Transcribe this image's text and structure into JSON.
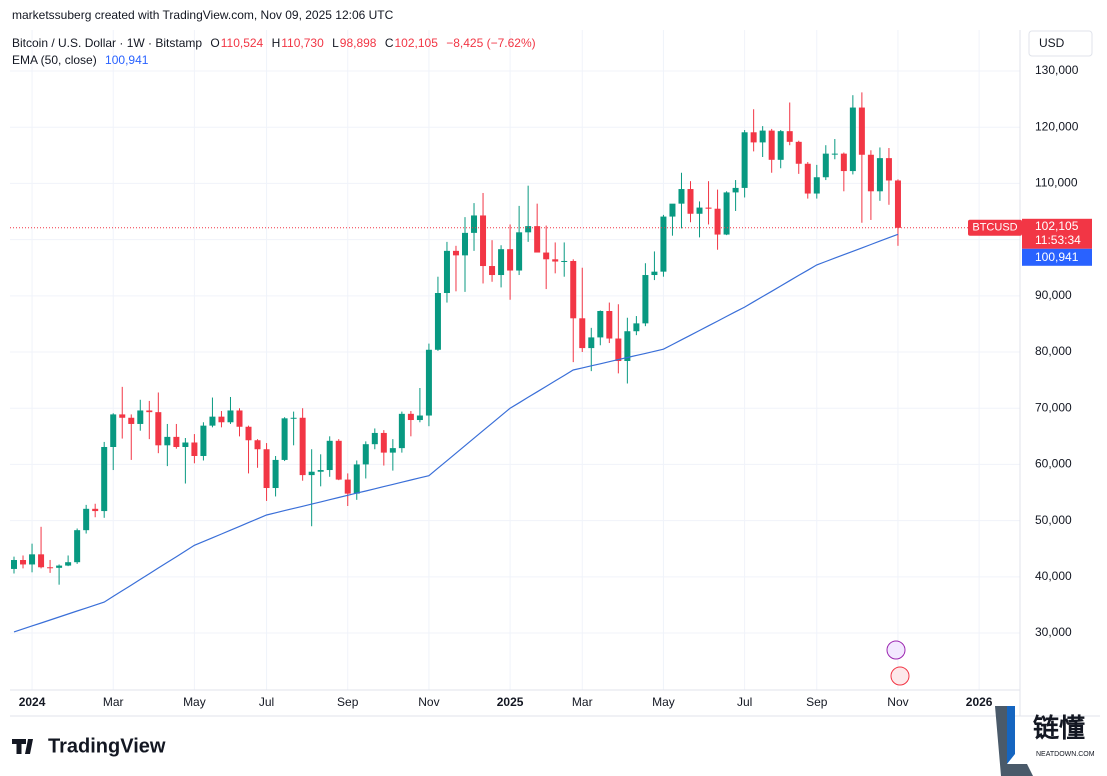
{
  "header": {
    "credit": "marketssuberg created with TradingView.com, Nov 09, 2025 12:06 UTC"
  },
  "legend": {
    "symbol": "Bitcoin / U.S. Dollar · 1W · Bitstamp",
    "o_key": "O",
    "o": "110,524",
    "h_key": "H",
    "h": "110,730",
    "l_key": "L",
    "l": "98,898",
    "c_key": "C",
    "c": "102,105",
    "change": "−8,425 (−7.62%)",
    "ema_name": "EMA (50, close)",
    "ema_value": "100,941"
  },
  "price_scale": {
    "currency": "USD",
    "symbol": "BTCUSD",
    "countdown": "11:53:34"
  },
  "footer": {
    "brand": "TradingView",
    "watermark": "链懂",
    "watermark_sub": "NEATDOWN.COM"
  },
  "chart_data": {
    "type": "candlestick",
    "categories": [
      null,
      null,
      "2024",
      null,
      null,
      null,
      null,
      null,
      null,
      null,
      null,
      "Mar",
      null,
      null,
      null,
      null,
      null,
      null,
      null,
      null,
      "May",
      null,
      null,
      null,
      null,
      null,
      null,
      null,
      "Jul",
      null,
      null,
      null,
      null,
      null,
      null,
      null,
      null,
      "Sep",
      null,
      null,
      null,
      null,
      null,
      null,
      null,
      null,
      "Nov",
      null,
      null,
      null,
      null,
      null,
      null,
      null,
      null,
      "2025",
      null,
      null,
      null,
      null,
      null,
      null,
      null,
      "Mar",
      null,
      null,
      null,
      null,
      null,
      null,
      null,
      null,
      "May",
      null,
      null,
      null,
      null,
      null,
      null,
      null,
      null,
      "Jul",
      null,
      null,
      null,
      null,
      null,
      null,
      null,
      "Sep",
      null,
      null,
      null,
      null,
      null,
      null,
      null,
      null,
      "Nov",
      null,
      null,
      null,
      null,
      null,
      null,
      null,
      null,
      "2026"
    ],
    "up_color": "#089981",
    "down_color": "#f23645",
    "open": [
      41400,
      42990,
      42200,
      44000,
      41700,
      41600,
      42000,
      42600,
      48300,
      52100,
      51700,
      63100,
      68900,
      68300,
      67200,
      69600,
      69300,
      63400,
      64900,
      63100,
      63900,
      61500,
      66900,
      68500,
      67500,
      69600,
      66700,
      64300,
      62700,
      55800,
      60800,
      68200,
      68300,
      58100,
      58700,
      59000,
      64200,
      57300,
      54800,
      60000,
      63600,
      65600,
      62100,
      62900,
      69000,
      67900,
      68700,
      80400,
      90500,
      98000,
      97200,
      101200,
      104300,
      95300,
      93700,
      98300,
      94500,
      101300,
      102400,
      97700,
      96500,
      96100,
      96200,
      86000,
      80700,
      82600,
      87300,
      82400,
      78400,
      83700,
      85100,
      93700,
      94300,
      104100,
      106400,
      109000,
      104600,
      105700,
      105500,
      100900,
      108400,
      109200,
      119100,
      117300,
      119400,
      114200,
      119300,
      117400,
      113500,
      108200,
      111100,
      115300,
      115300,
      112200,
      123500,
      115100,
      108600,
      114500,
      110524,
      null,
      null,
      null,
      null,
      null,
      null,
      null,
      null,
      null
    ],
    "high": [
      43600,
      43800,
      45900,
      48900,
      43000,
      42200,
      43800,
      48600,
      52800,
      53000,
      64000,
      69100,
      73800,
      68900,
      71500,
      71300,
      72800,
      67200,
      67200,
      64700,
      65400,
      67500,
      71900,
      69500,
      72000,
      70000,
      66900,
      64500,
      63800,
      61500,
      68400,
      69400,
      70000,
      62700,
      61800,
      65000,
      64500,
      58400,
      60700,
      64100,
      66400,
      66100,
      64500,
      69400,
      69500,
      73600,
      81500,
      93400,
      99600,
      98900,
      104000,
      106500,
      108300,
      99900,
      99000,
      102700,
      106000,
      109600,
      106400,
      102500,
      99500,
      99500,
      96500,
      95000,
      84300,
      87400,
      88800,
      88500,
      86100,
      86400,
      95800,
      97900,
      104400,
      105800,
      111900,
      110400,
      106800,
      110400,
      108900,
      108600,
      110600,
      119500,
      123200,
      120200,
      119700,
      119500,
      124400,
      117600,
      113800,
      113300,
      116800,
      117900,
      115500,
      125700,
      126200,
      115900,
      116400,
      116300,
      110730,
      null,
      null,
      null,
      null,
      null,
      null,
      null,
      null,
      null
    ],
    "low": [
      40600,
      41500,
      40800,
      41500,
      40700,
      38600,
      41900,
      42300,
      47700,
      50600,
      50500,
      59000,
      64600,
      60800,
      66000,
      64500,
      62000,
      59700,
      62800,
      56600,
      60200,
      60700,
      66600,
      66600,
      67200,
      65000,
      58400,
      59400,
      53500,
      54300,
      60600,
      63400,
      57100,
      49000,
      56100,
      57800,
      57200,
      52600,
      53700,
      57500,
      62700,
      59800,
      58900,
      62100,
      65000,
      67500,
      66800,
      80200,
      88800,
      90800,
      90700,
      98000,
      92200,
      92500,
      91500,
      89300,
      93700,
      99600,
      97800,
      91200,
      94000,
      93400,
      78200,
      80000,
      76600,
      81200,
      81600,
      76200,
      74400,
      83000,
      84600,
      92800,
      93400,
      100700,
      102000,
      103100,
      100400,
      102700,
      98200,
      100800,
      105100,
      107500,
      115700,
      114700,
      111900,
      112700,
      116800,
      111700,
      107300,
      107300,
      110600,
      114300,
      108600,
      111600,
      103000,
      103500,
      106900,
      106200,
      98898,
      null,
      null,
      null,
      null,
      null,
      null,
      null,
      null,
      null
    ],
    "close": [
      42990,
      42200,
      44000,
      41700,
      41600,
      42000,
      42600,
      48300,
      52100,
      51700,
      63100,
      68900,
      68300,
      67200,
      69600,
      69300,
      63400,
      64900,
      63100,
      63900,
      61500,
      66900,
      68500,
      67500,
      69600,
      66700,
      64300,
      62700,
      55800,
      60800,
      68200,
      68300,
      58100,
      58700,
      59000,
      64200,
      57300,
      54800,
      60000,
      63600,
      65600,
      62100,
      62900,
      69000,
      67900,
      68700,
      80400,
      90500,
      98000,
      97200,
      101200,
      104300,
      95300,
      93700,
      98300,
      94500,
      101300,
      102400,
      97700,
      96500,
      96100,
      96200,
      86000,
      80700,
      82600,
      87300,
      82400,
      78400,
      83700,
      85100,
      93700,
      94300,
      104100,
      106400,
      109000,
      104600,
      105700,
      105500,
      100900,
      108400,
      109200,
      119100,
      117300,
      119400,
      114200,
      119300,
      117400,
      113500,
      108200,
      111100,
      115300,
      115300,
      112200,
      123500,
      115100,
      108600,
      114500,
      110524,
      102105,
      null,
      null,
      null,
      null,
      null,
      null,
      null,
      null,
      null
    ],
    "ema": {
      "color": "#3a6fd8",
      "values": [
        30200,
        30730,
        31260,
        31790,
        32320,
        32850,
        33380,
        33910,
        34440,
        34970,
        35500,
        36510,
        37520,
        38530,
        39540,
        40550,
        41560,
        42570,
        43580,
        44590,
        45600,
        46275,
        46950,
        47625,
        48300,
        48975,
        49650,
        50325,
        51000,
        51389,
        51778,
        52167,
        52556,
        52944,
        53333,
        53722,
        54111,
        54500,
        54889,
        55278,
        55667,
        56056,
        56444,
        56833,
        57222,
        57611,
        58000,
        59333,
        60667,
        62000,
        63333,
        64667,
        66000,
        67333,
        68667,
        70000,
        70971,
        71943,
        72914,
        73886,
        74857,
        75829,
        76800,
        77170,
        77540,
        77910,
        78280,
        78650,
        79020,
        79390,
        79760,
        80130,
        80500,
        81333,
        82167,
        83000,
        83833,
        84667,
        85500,
        86333,
        87167,
        88000,
        88938,
        89875,
        90813,
        91750,
        92688,
        93625,
        94563,
        95500,
        96105,
        96709,
        97314,
        97918,
        98523,
        99127,
        99732,
        100336,
        100941,
        null,
        null,
        null,
        null,
        null,
        null,
        null,
        null,
        null
      ]
    },
    "ylim": [
      19860,
      137300
    ],
    "yticks": [
      {
        "value": 30000,
        "label": "30,000"
      },
      {
        "value": 40000,
        "label": "40,000"
      },
      {
        "value": 50000,
        "label": "50,000"
      },
      {
        "value": 60000,
        "label": "60,000"
      },
      {
        "value": 70000,
        "label": "70,000"
      },
      {
        "value": 80000,
        "label": "80,000"
      },
      {
        "value": 90000,
        "label": "90,000"
      },
      {
        "value": 100000,
        "label": "100,000"
      },
      {
        "value": 110000,
        "label": "110,000"
      },
      {
        "value": 120000,
        "label": "120,000"
      },
      {
        "value": 130000,
        "label": "130,000"
      }
    ],
    "grid": true
  }
}
